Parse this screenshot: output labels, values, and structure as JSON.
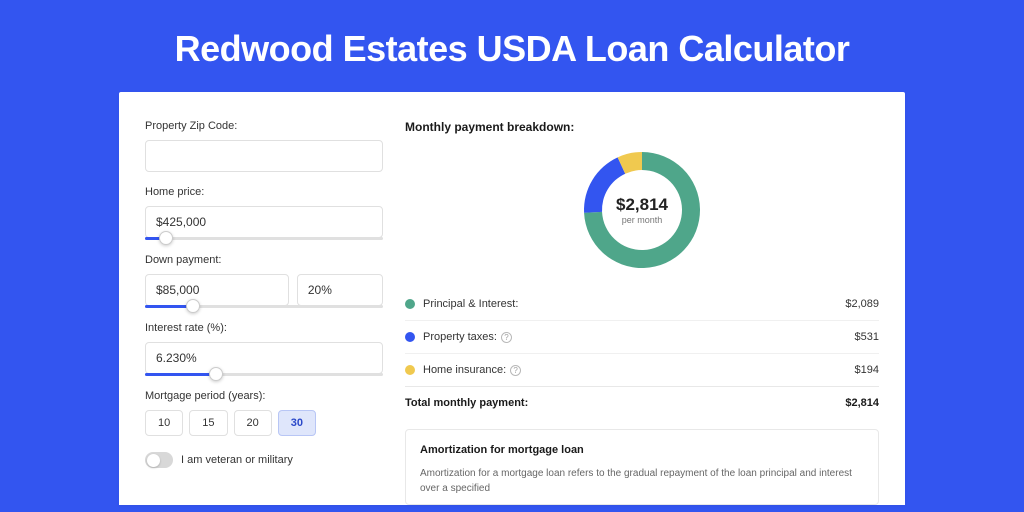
{
  "page": {
    "title": "Redwood Estates USDA Loan Calculator",
    "bg_color": "#3355f0"
  },
  "form": {
    "zip": {
      "label": "Property Zip Code:",
      "value": ""
    },
    "price": {
      "label": "Home price:",
      "value": "$425,000",
      "slider_pct": 9
    },
    "down": {
      "label": "Down payment:",
      "value": "$85,000",
      "pct": "20%",
      "slider_pct": 20
    },
    "rate": {
      "label": "Interest rate (%):",
      "value": "6.230%",
      "slider_pct": 30
    },
    "period": {
      "label": "Mortgage period (years):",
      "options": [
        "10",
        "15",
        "20",
        "30"
      ],
      "selected": "30"
    },
    "veteran": {
      "label": "I am veteran or military",
      "on": false
    }
  },
  "breakdown": {
    "title": "Monthly payment breakdown:",
    "center_amount": "$2,814",
    "center_sub": "per month",
    "donut": {
      "size": 124,
      "thickness": 18,
      "bg": "#ffffff",
      "slices": [
        {
          "label": "Principal & Interest:",
          "value": "$2,089",
          "color": "#4fa68a",
          "num": 2089,
          "info": false
        },
        {
          "label": "Property taxes:",
          "value": "$531",
          "color": "#3355f0",
          "num": 531,
          "info": true
        },
        {
          "label": "Home insurance:",
          "value": "$194",
          "color": "#f0c94f",
          "num": 194,
          "info": true
        }
      ]
    },
    "total": {
      "label": "Total monthly payment:",
      "value": "$2,814"
    }
  },
  "amortization": {
    "title": "Amortization for mortgage loan",
    "text": "Amortization for a mortgage loan refers to the gradual repayment of the loan principal and interest over a specified"
  }
}
